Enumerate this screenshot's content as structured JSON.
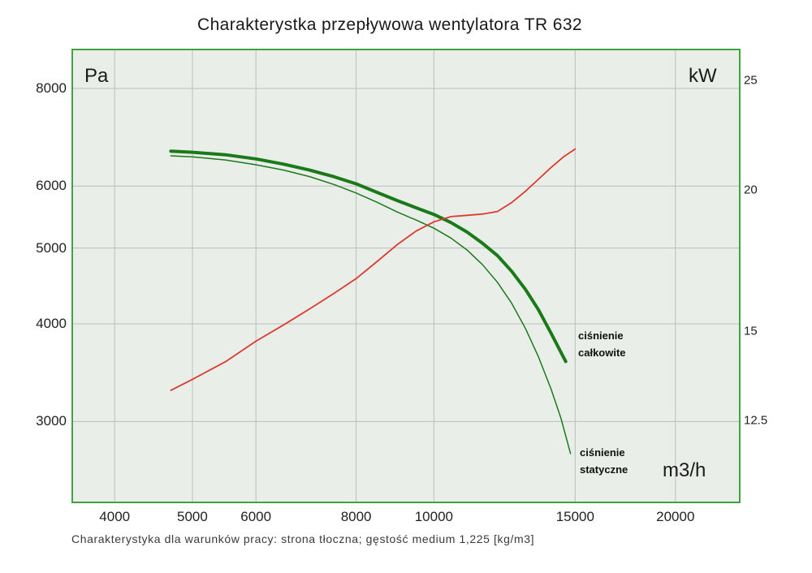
{
  "title": "Charakterystka przepływowa wentylatora TR 632",
  "caption": "Charakterystyka dla warunków pracy: strona tłoczna; gęstość medium 1,225 [kg/m3]",
  "chart_data": {
    "type": "line",
    "title": "Charakterystka przepływowa wentylatora TR 632",
    "grid": true,
    "x_axis": {
      "unit": "m3/h",
      "scale": "log",
      "min": 3550,
      "max": 24000,
      "ticks": [
        {
          "value": 4000,
          "label": "4000"
        },
        {
          "value": 5000,
          "label": "5000"
        },
        {
          "value": 6000,
          "label": "6000"
        },
        {
          "value": 8000,
          "label": "8000"
        },
        {
          "value": 10000,
          "label": "10000"
        },
        {
          "value": 15000,
          "label": "15000"
        },
        {
          "value": 20000,
          "label": "20000"
        }
      ]
    },
    "y_left": {
      "unit": "Pa",
      "scale": "log",
      "min": 2370,
      "max": 8950,
      "ticks": [
        {
          "value": 8000,
          "label": "8000"
        },
        {
          "value": 6000,
          "label": "6000"
        },
        {
          "value": 5000,
          "label": "5000"
        },
        {
          "value": 4000,
          "label": "4000"
        },
        {
          "value": 3000,
          "label": "3000"
        }
      ]
    },
    "y_right": {
      "unit": "kW",
      "scale": "log",
      "min": 10.6,
      "max": 26.6,
      "ticks": [
        {
          "value": 25,
          "label": "25"
        },
        {
          "value": 20,
          "label": "20"
        },
        {
          "value": 15,
          "label": "15"
        },
        {
          "value": 12.5,
          "label": "12.5"
        }
      ]
    },
    "colors": {
      "plot_bg": "#e9eee8",
      "border": "#3fa33f",
      "grid": "#bdbdbd",
      "green": "#1a7a1a",
      "red": "#dc3b30"
    },
    "series": [
      {
        "id": "cisnienie-statyczne",
        "label": "ciśnienie statyczne",
        "axis": "left",
        "color": "#1a7a1a",
        "width": 1.5,
        "points": [
          [
            4700,
            6560
          ],
          [
            5000,
            6540
          ],
          [
            5500,
            6480
          ],
          [
            6000,
            6390
          ],
          [
            6500,
            6290
          ],
          [
            7000,
            6170
          ],
          [
            7500,
            6030
          ],
          [
            8000,
            5880
          ],
          [
            8500,
            5720
          ],
          [
            9000,
            5560
          ],
          [
            9500,
            5430
          ],
          [
            10000,
            5300
          ],
          [
            10500,
            5150
          ],
          [
            11000,
            4970
          ],
          [
            11500,
            4760
          ],
          [
            12000,
            4520
          ],
          [
            12500,
            4250
          ],
          [
            13000,
            3950
          ],
          [
            13500,
            3630
          ],
          [
            14000,
            3300
          ],
          [
            14400,
            3030
          ],
          [
            14800,
            2730
          ]
        ]
      },
      {
        "id": "cisnienie-calkowite",
        "label": "ciśnienie całkowite",
        "axis": "left",
        "color": "#1a7a1a",
        "width": 4,
        "points": [
          [
            4700,
            6650
          ],
          [
            5000,
            6630
          ],
          [
            5500,
            6580
          ],
          [
            6000,
            6500
          ],
          [
            6500,
            6400
          ],
          [
            7000,
            6290
          ],
          [
            7500,
            6170
          ],
          [
            8000,
            6040
          ],
          [
            8500,
            5890
          ],
          [
            9000,
            5750
          ],
          [
            9500,
            5630
          ],
          [
            10000,
            5520
          ],
          [
            10500,
            5390
          ],
          [
            11000,
            5240
          ],
          [
            11500,
            5070
          ],
          [
            12000,
            4890
          ],
          [
            12500,
            4670
          ],
          [
            13000,
            4430
          ],
          [
            13500,
            4170
          ],
          [
            14000,
            3890
          ],
          [
            14600,
            3580
          ]
        ]
      },
      {
        "id": "moc",
        "axis": "right",
        "color": "#dc3b30",
        "width": 1.8,
        "points": [
          [
            4700,
            13.3
          ],
          [
            5000,
            13.6
          ],
          [
            5500,
            14.1
          ],
          [
            6000,
            14.7
          ],
          [
            6500,
            15.2
          ],
          [
            7000,
            15.7
          ],
          [
            7500,
            16.2
          ],
          [
            8000,
            16.7
          ],
          [
            8500,
            17.3
          ],
          [
            9000,
            17.9
          ],
          [
            9500,
            18.4
          ],
          [
            10000,
            18.75
          ],
          [
            10500,
            18.95
          ],
          [
            11000,
            19.0
          ],
          [
            11500,
            19.05
          ],
          [
            12000,
            19.15
          ],
          [
            12500,
            19.5
          ],
          [
            13000,
            19.95
          ],
          [
            13500,
            20.45
          ],
          [
            14000,
            20.95
          ],
          [
            14500,
            21.4
          ],
          [
            15000,
            21.75
          ]
        ]
      }
    ]
  }
}
